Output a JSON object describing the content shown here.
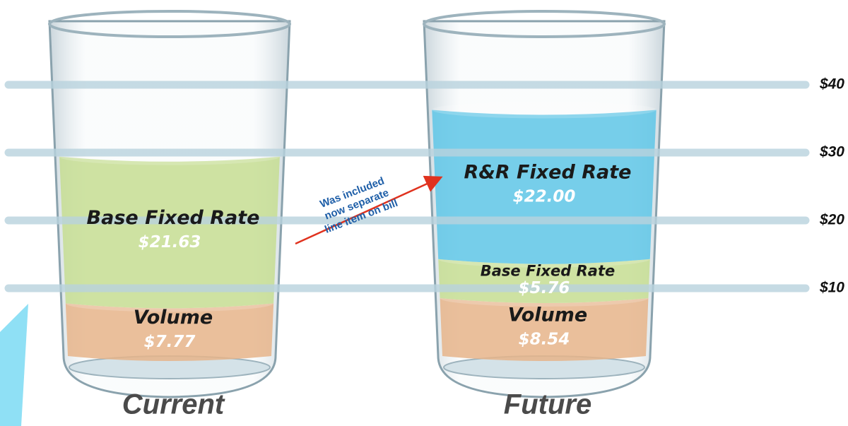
{
  "chart_data": {
    "type": "glass-stack",
    "categories": [
      "Current",
      "Future"
    ],
    "series": [
      {
        "name": "Volume",
        "color": "#e6b48a",
        "values": [
          7.77,
          8.54
        ],
        "value_labels": [
          "$7.77",
          "$8.54"
        ]
      },
      {
        "name": "Base Fixed Rate",
        "color": "#c6dd92",
        "values": [
          21.63,
          5.76
        ],
        "value_labels": [
          "$21.63",
          "$5.76"
        ]
      },
      {
        "name": "R&R Fixed Rate",
        "color": "#5ec6e6",
        "values": [
          null,
          22.0
        ],
        "value_labels": [
          null,
          "$22.00"
        ]
      }
    ],
    "ylim": [
      0,
      40
    ],
    "yticks": [
      {
        "value": 10,
        "label": "$10"
      },
      {
        "value": 20,
        "label": "$20"
      },
      {
        "value": 30,
        "label": "$30"
      },
      {
        "value": 40,
        "label": "$40"
      }
    ],
    "grid": true,
    "annotation": {
      "lines": [
        "Was included",
        "now separate",
        "line item on bill"
      ]
    }
  }
}
